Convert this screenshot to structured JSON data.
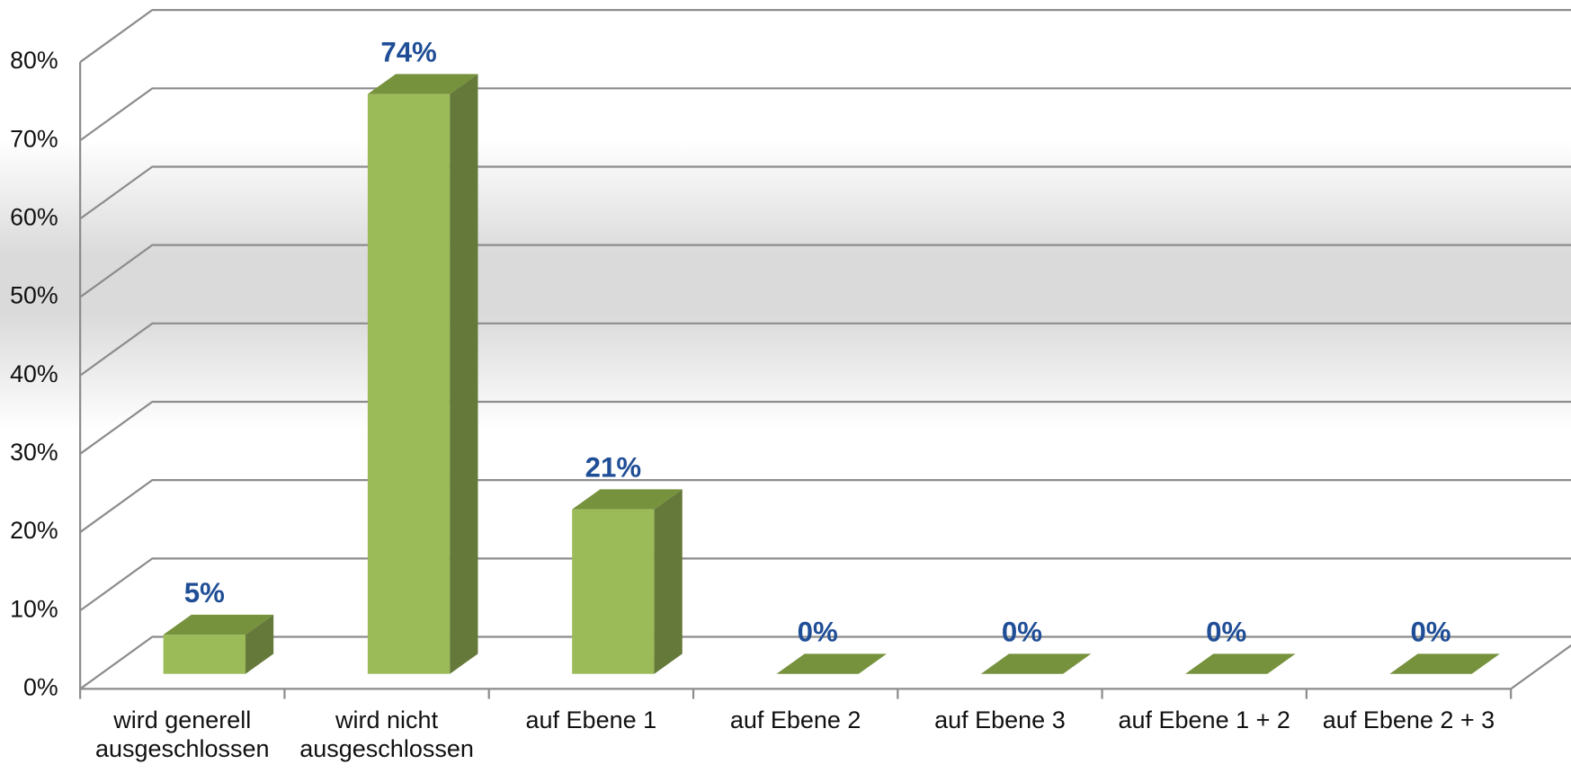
{
  "chart_data": {
    "type": "bar3d",
    "categories": [
      "wird generell ausgeschlossen",
      "wird nicht ausgeschlossen",
      "auf Ebene 1",
      "auf Ebene 2",
      "auf Ebene 3",
      "auf Ebene 1 + 2",
      "auf Ebene 2 + 3"
    ],
    "values": [
      5,
      74,
      21,
      0,
      0,
      0,
      0
    ],
    "value_labels": [
      "5%",
      "74%",
      "21%",
      "0%",
      "0%",
      "0%",
      "0%"
    ],
    "color": "#9bbb59",
    "ylim": [
      0,
      80
    ],
    "yticks": [
      {
        "value": 0,
        "label": "0%"
      },
      {
        "value": 10,
        "label": "10%"
      },
      {
        "value": 20,
        "label": "20%"
      },
      {
        "value": 30,
        "label": "30%"
      },
      {
        "value": 40,
        "label": "40%"
      },
      {
        "value": 50,
        "label": "50%"
      },
      {
        "value": 60,
        "label": "60%"
      },
      {
        "value": 70,
        "label": "70%"
      },
      {
        "value": 80,
        "label": "80%"
      }
    ],
    "grid": true
  }
}
